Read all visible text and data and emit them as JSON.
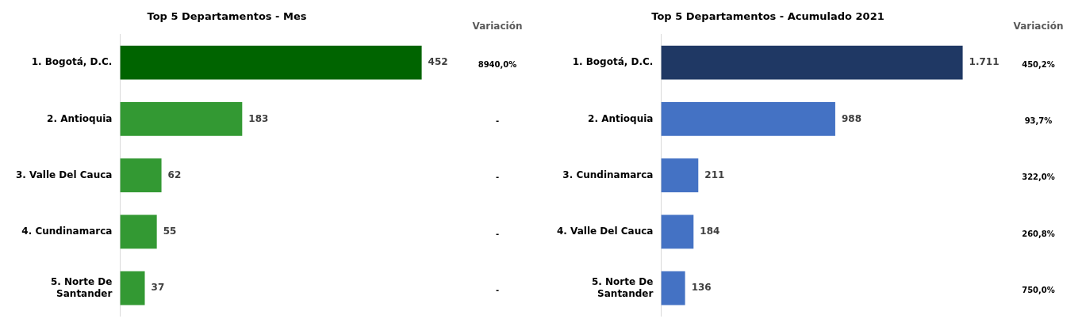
{
  "chart_data": [
    {
      "type": "bar",
      "orientation": "horizontal",
      "title": "Top 5 Departamentos - Mes",
      "categories": [
        "1. Bogotá, D.C.",
        "2. Antioquia",
        "3. Valle Del Cauca",
        "4. Cundinamarca",
        "5. Norte De Santander"
      ],
      "values": [
        452,
        183,
        62,
        55,
        37
      ],
      "colors": [
        "#006400",
        "#339933",
        "#339933",
        "#339933",
        "#339933"
      ],
      "value_labels": [
        "452",
        "183",
        "62",
        "55",
        "37"
      ],
      "annotations": [
        "Variación",
        "8940,0%",
        "-",
        "-",
        "-",
        "-"
      ]
    },
    {
      "type": "bar",
      "orientation": "horizontal",
      "title": "Top 5 Departamentos - Acumulado 2021",
      "categories": [
        "1. Bogotá, D.C.",
        "2. Antioquia",
        "3. Cundinamarca",
        "4. Valle Del Cauca",
        "5. Norte De Santander"
      ],
      "values": [
        1711,
        988,
        211,
        184,
        136
      ],
      "colors": [
        "#1f3864",
        "#4472c4",
        "#4472c4",
        "#4472c4",
        "#4472c4"
      ],
      "value_labels": [
        "1.711",
        "988",
        "211",
        "184",
        "136"
      ],
      "annotations": [
        "Variación",
        "450,2%",
        "93,7%",
        "322,0%",
        "260,8%",
        "750,0%"
      ]
    }
  ]
}
